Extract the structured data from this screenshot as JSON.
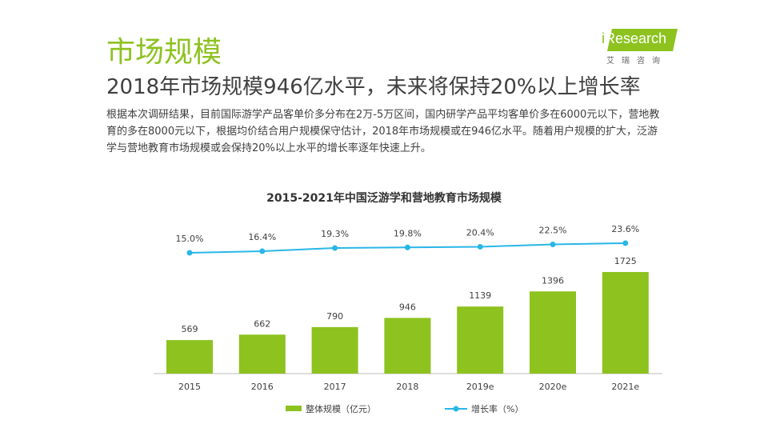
{
  "header": {
    "title": "市场规模",
    "subtitle": "2018年市场规模946亿水平，未来将保持20%以上增长率",
    "body": "根据本次调研结果，目前国际游学产品客单价多分布在2万-5万区间，国内研学产品平均客单价多在6000元以下，营地教育的多在8000元以下，根据均价结合用户规模保守估计，2018年市场规模或在946亿水平。随着用户规模的扩大，泛游学与营地教育市场规模或会保持20%以上水平的增长率逐年快速上升。"
  },
  "logo": {
    "text": "iResearch",
    "cn": "艾瑞咨询"
  },
  "chart_data": {
    "type": "bar+line",
    "title": "2015-2021年中国泛游学和营地教育市场规模",
    "categories": [
      "2015",
      "2016",
      "2017",
      "2018",
      "2019e",
      "2020e",
      "2021e"
    ],
    "series": [
      {
        "name": "整体规模（亿元）",
        "type": "bar",
        "color": "#8dc21f",
        "values": [
          569,
          662,
          790,
          946,
          1139,
          1396,
          1725
        ]
      },
      {
        "name": "增长率（%）",
        "type": "line",
        "color": "#29b6e8",
        "values": [
          15.0,
          16.4,
          19.3,
          19.8,
          20.4,
          22.5,
          23.6
        ],
        "labels": [
          "15.0%",
          "16.4%",
          "19.3%",
          "19.8%",
          "20.4%",
          "22.5%",
          "23.6%"
        ]
      }
    ],
    "legend": "bottom",
    "grid": false
  }
}
